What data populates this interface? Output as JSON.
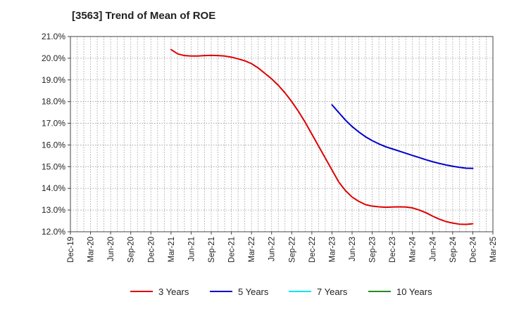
{
  "chart_data": {
    "type": "line",
    "title": "[3563]  Trend of Mean of ROE",
    "xlabel": "",
    "ylabel": "",
    "x_ticks": [
      "Dec-19",
      "Mar-20",
      "Jun-20",
      "Sep-20",
      "Dec-20",
      "Mar-21",
      "Jun-21",
      "Sep-21",
      "Dec-21",
      "Mar-22",
      "Jun-22",
      "Sep-22",
      "Dec-22",
      "Mar-23",
      "Jun-23",
      "Sep-23",
      "Dec-23",
      "Mar-24",
      "Jun-24",
      "Sep-24",
      "Dec-24",
      "Mar-25"
    ],
    "y_ticks": [
      "12.0%",
      "13.0%",
      "14.0%",
      "15.0%",
      "16.0%",
      "17.0%",
      "18.0%",
      "19.0%",
      "20.0%",
      "21.0%"
    ],
    "ylim": [
      12.0,
      21.0
    ],
    "grid": true,
    "legend_position": "bottom",
    "series": [
      {
        "name": "3 Years",
        "color": "#dd0000",
        "points": [
          [
            "Mar-21",
            20.4
          ],
          [
            "Apr-21",
            20.2
          ],
          [
            "May-21",
            20.12
          ],
          [
            "Jun-21",
            20.1
          ],
          [
            "Jul-21",
            20.1
          ],
          [
            "Aug-21",
            20.12
          ],
          [
            "Sep-21",
            20.13
          ],
          [
            "Oct-21",
            20.12
          ],
          [
            "Nov-21",
            20.1
          ],
          [
            "Dec-21",
            20.05
          ],
          [
            "Jan-22",
            19.97
          ],
          [
            "Feb-22",
            19.88
          ],
          [
            "Mar-22",
            19.75
          ],
          [
            "Apr-22",
            19.55
          ],
          [
            "May-22",
            19.3
          ],
          [
            "Jun-22",
            19.05
          ],
          [
            "Jul-22",
            18.75
          ],
          [
            "Aug-22",
            18.4
          ],
          [
            "Sep-22",
            18.0
          ],
          [
            "Oct-22",
            17.55
          ],
          [
            "Nov-22",
            17.05
          ],
          [
            "Dec-22",
            16.5
          ],
          [
            "Jan-23",
            15.95
          ],
          [
            "Feb-23",
            15.4
          ],
          [
            "Mar-23",
            14.85
          ],
          [
            "Apr-23",
            14.3
          ],
          [
            "May-23",
            13.9
          ],
          [
            "Jun-23",
            13.6
          ],
          [
            "Jul-23",
            13.4
          ],
          [
            "Aug-23",
            13.25
          ],
          [
            "Sep-23",
            13.18
          ],
          [
            "Oct-23",
            13.15
          ],
          [
            "Nov-23",
            13.13
          ],
          [
            "Dec-23",
            13.14
          ],
          [
            "Jan-24",
            13.15
          ],
          [
            "Feb-24",
            13.14
          ],
          [
            "Mar-24",
            13.1
          ],
          [
            "Apr-24",
            13.0
          ],
          [
            "May-24",
            12.88
          ],
          [
            "Jun-24",
            12.72
          ],
          [
            "Jul-24",
            12.58
          ],
          [
            "Aug-24",
            12.47
          ],
          [
            "Sep-24",
            12.4
          ],
          [
            "Oct-24",
            12.35
          ],
          [
            "Nov-24",
            12.34
          ],
          [
            "Dec-24",
            12.37
          ]
        ]
      },
      {
        "name": "5 Years",
        "color": "#0000cc",
        "points": [
          [
            "Mar-23",
            17.85
          ],
          [
            "Apr-23",
            17.5
          ],
          [
            "May-23",
            17.15
          ],
          [
            "Jun-23",
            16.85
          ],
          [
            "Jul-23",
            16.6
          ],
          [
            "Aug-23",
            16.38
          ],
          [
            "Sep-23",
            16.2
          ],
          [
            "Oct-23",
            16.05
          ],
          [
            "Nov-23",
            15.92
          ],
          [
            "Dec-23",
            15.82
          ],
          [
            "Jan-24",
            15.72
          ],
          [
            "Feb-24",
            15.62
          ],
          [
            "Mar-24",
            15.52
          ],
          [
            "Apr-24",
            15.42
          ],
          [
            "May-24",
            15.32
          ],
          [
            "Jun-24",
            15.23
          ],
          [
            "Jul-24",
            15.15
          ],
          [
            "Aug-24",
            15.08
          ],
          [
            "Sep-24",
            15.02
          ],
          [
            "Oct-24",
            14.97
          ],
          [
            "Nov-24",
            14.93
          ],
          [
            "Dec-24",
            14.92
          ]
        ]
      },
      {
        "name": "7 Years",
        "color": "#00e5ee",
        "points": []
      },
      {
        "name": "10 Years",
        "color": "#228b22",
        "points": []
      }
    ]
  }
}
